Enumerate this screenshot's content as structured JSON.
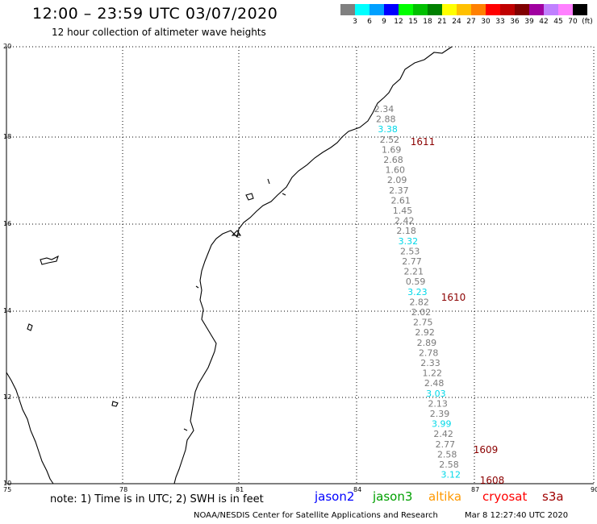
{
  "header": {
    "title": "12:00 – 23:59 UTC 03/07/2020",
    "subtitle": "12 hour collection of altimeter wave heights"
  },
  "scale": {
    "colors": [
      "#808080",
      "#00ffff",
      "#00a0ff",
      "#0000ff",
      "#00ff00",
      "#00c000",
      "#008000",
      "#ffff00",
      "#ffc000",
      "#ff8000",
      "#ff0000",
      "#c00000",
      "#800000",
      "#a000a0",
      "#c080ff",
      "#ff80ff",
      "#000000"
    ],
    "labels": [
      "3",
      "6",
      "9",
      "12",
      "15",
      "18",
      "21",
      "24",
      "27",
      "30",
      "33",
      "36",
      "39",
      "42",
      "45",
      "70",
      "(ft)"
    ]
  },
  "axes": {
    "x_ticks": [
      "75",
      "78",
      "81",
      "84",
      "87",
      "90"
    ],
    "y_ticks": [
      "20",
      "18",
      "16",
      "14",
      "12",
      "10"
    ]
  },
  "measurements": {
    "default_color": "#7a7a7a",
    "highlight_color": "#00d8e8",
    "values": [
      {
        "v": "2.34",
        "hl": false
      },
      {
        "v": "2.88",
        "hl": false
      },
      {
        "v": "3.38",
        "hl": true
      },
      {
        "v": "2.52",
        "hl": false
      },
      {
        "v": "1.69",
        "hl": false
      },
      {
        "v": "2.68",
        "hl": false
      },
      {
        "v": "1.60",
        "hl": false
      },
      {
        "v": "2.09",
        "hl": false
      },
      {
        "v": "2.37",
        "hl": false
      },
      {
        "v": "2.61",
        "hl": false
      },
      {
        "v": "1.45",
        "hl": false
      },
      {
        "v": "2.42",
        "hl": false
      },
      {
        "v": "2.18",
        "hl": false
      },
      {
        "v": "3.32",
        "hl": true
      },
      {
        "v": "2.53",
        "hl": false
      },
      {
        "v": "2.77",
        "hl": false
      },
      {
        "v": "2.21",
        "hl": false
      },
      {
        "v": "0.59",
        "hl": false
      },
      {
        "v": "3.23",
        "hl": true
      },
      {
        "v": "2.82",
        "hl": false
      },
      {
        "v": "2.02",
        "hl": false
      },
      {
        "v": "2.75",
        "hl": false
      },
      {
        "v": "2.92",
        "hl": false
      },
      {
        "v": "2.89",
        "hl": false
      },
      {
        "v": "2.78",
        "hl": false
      },
      {
        "v": "2.33",
        "hl": false
      },
      {
        "v": "1.22",
        "hl": false
      },
      {
        "v": "2.48",
        "hl": false
      },
      {
        "v": "3.03",
        "hl": true
      },
      {
        "v": "2.13",
        "hl": false
      },
      {
        "v": "2.39",
        "hl": false
      },
      {
        "v": "3.99",
        "hl": true
      },
      {
        "v": "2.42",
        "hl": false
      },
      {
        "v": "2.77",
        "hl": false
      },
      {
        "v": "2.58",
        "hl": false
      },
      {
        "v": "2.58",
        "hl": false
      },
      {
        "v": "3.12",
        "hl": true
      }
    ]
  },
  "time_labels": {
    "color": "#8b0000",
    "items": [
      "1611",
      "1610",
      "1609",
      "1608"
    ]
  },
  "footer": {
    "note": "note: 1) Time is in UTC; 2) SWH is in feet",
    "satellites": [
      {
        "name": "jason2",
        "color": "#0000ff"
      },
      {
        "name": "jason3",
        "color": "#00a000"
      },
      {
        "name": "altika",
        "color": "#ff9900"
      },
      {
        "name": "cryosat",
        "color": "#ff0000"
      },
      {
        "name": "s3a",
        "color": "#a00000"
      }
    ],
    "credit": "NOAA/NESDIS Center for Satellite Applications and Research",
    "timestamp": "Mar  8 12:27:40 UTC 2020"
  }
}
